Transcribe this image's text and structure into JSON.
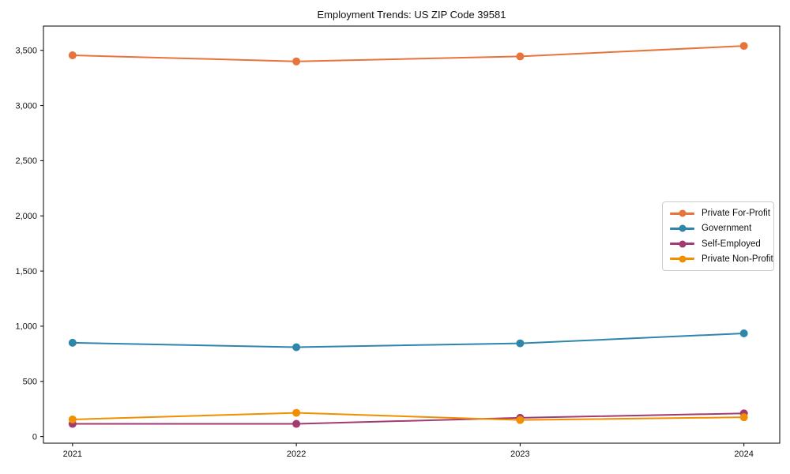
{
  "chart_data": {
    "type": "line",
    "title": "Employment Trends: US ZIP Code 39581",
    "xlabel": "",
    "ylabel": "",
    "x": [
      2021,
      2022,
      2023,
      2024
    ],
    "x_labels": [
      "2021",
      "2022",
      "2023",
      "2024"
    ],
    "series": [
      {
        "name": "Private For-Profit",
        "color": "#E8743B",
        "values": [
          3455,
          3400,
          3445,
          3540
        ]
      },
      {
        "name": "Government",
        "color": "#2E86AB",
        "values": [
          850,
          810,
          845,
          935
        ]
      },
      {
        "name": "Self-Employed",
        "color": "#A23B72",
        "values": [
          115,
          115,
          170,
          210
        ]
      },
      {
        "name": "Private Non-Profit",
        "color": "#F18F01",
        "values": [
          155,
          215,
          150,
          175
        ]
      }
    ],
    "xlim": [
      2020.87,
      2024.16
    ],
    "ylim": [
      -60,
      3720
    ],
    "yticks": [
      0,
      500,
      1000,
      1500,
      2000,
      2500,
      3000,
      3500
    ],
    "ytick_labels": [
      "0",
      "500",
      "1,000",
      "1,500",
      "2,000",
      "2,500",
      "3,000",
      "3,500"
    ],
    "grid": false,
    "legend_position": "center right",
    "line_width": 2,
    "marker": "circle",
    "marker_radius": 5
  }
}
